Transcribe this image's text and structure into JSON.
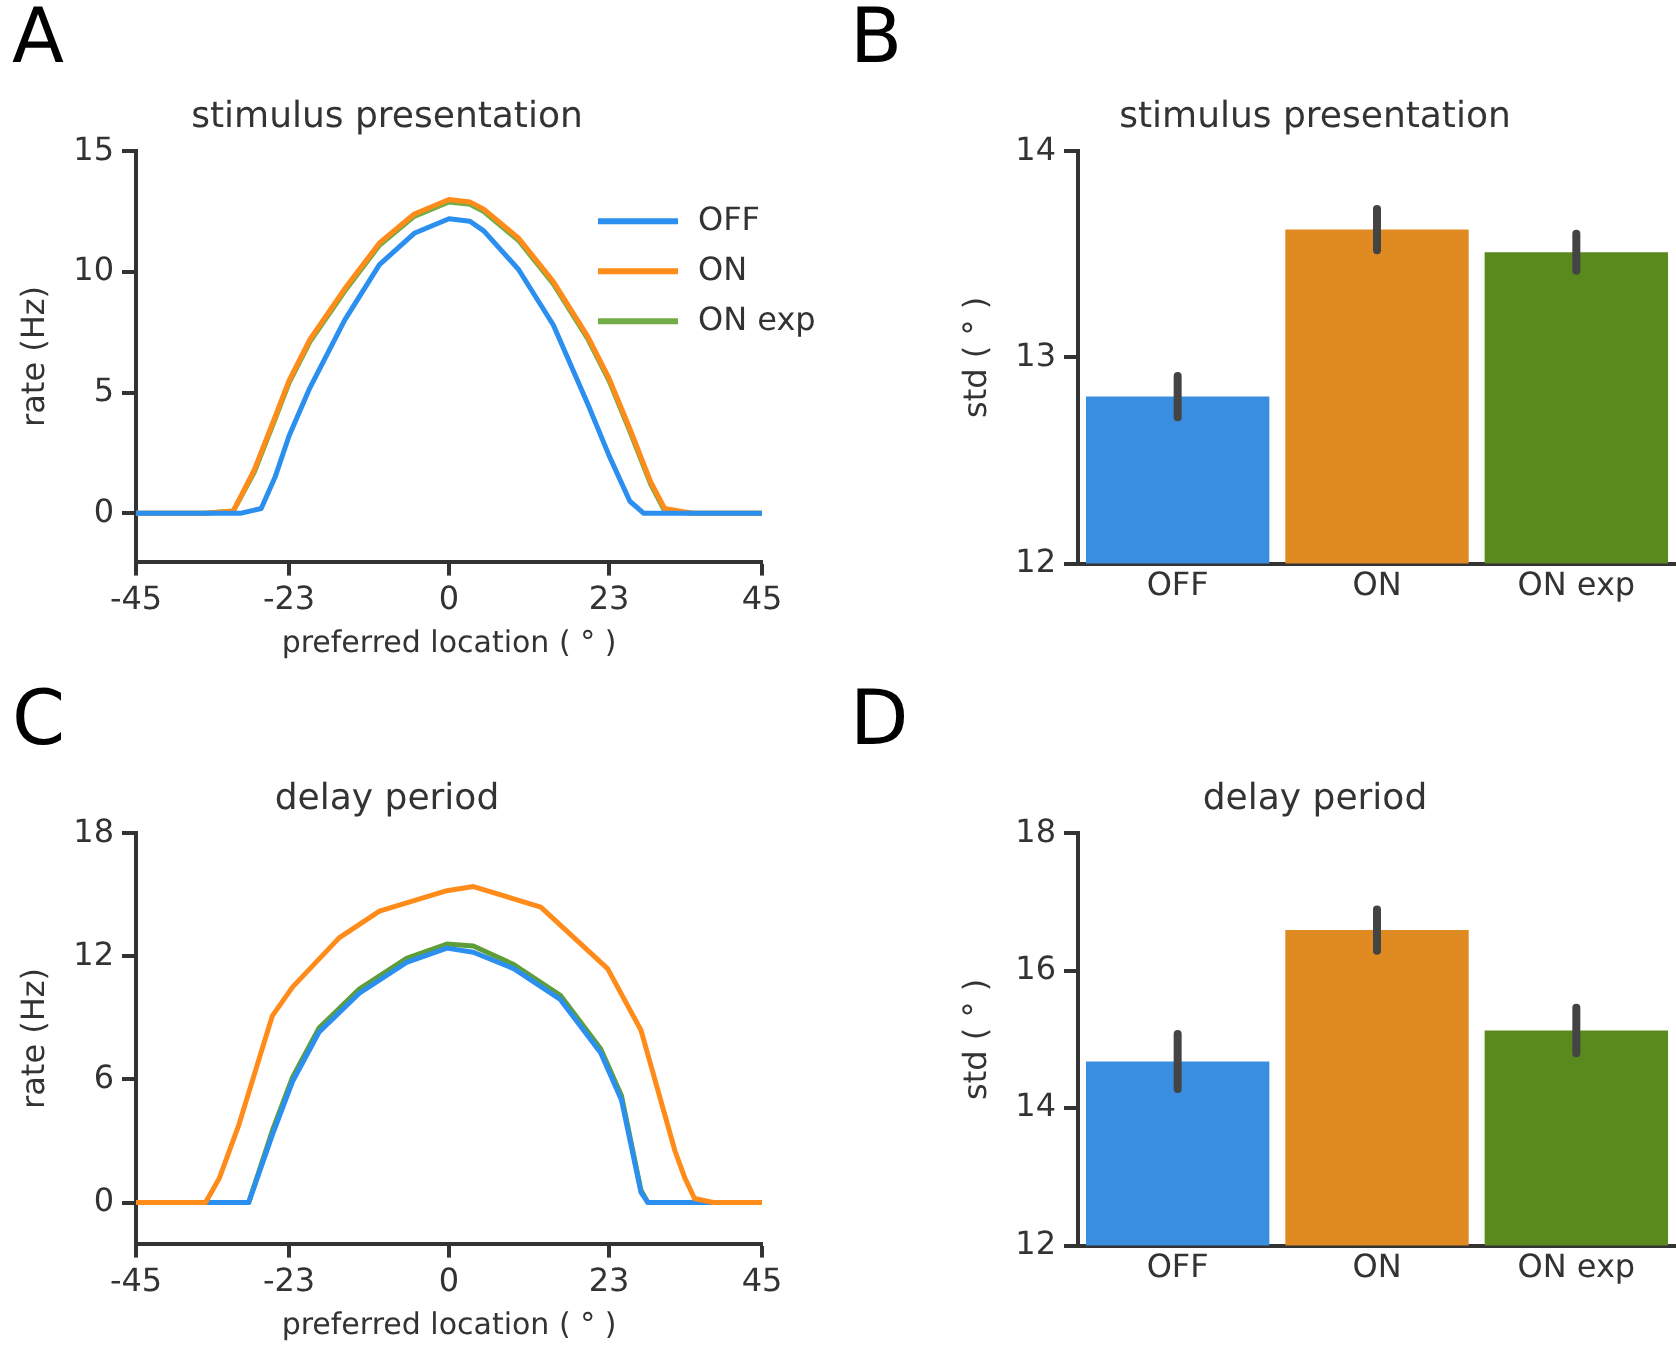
{
  "chart_data": [
    {
      "type": "line",
      "title": "stimulus presentation",
      "xlabel": "preferred location ( ° )",
      "ylabel": "rate (Hz)",
      "annotations": [
        "A"
      ],
      "legend": "top right",
      "xlim": [
        -45,
        45
      ],
      "xticks": [
        -45,
        -23,
        0,
        23,
        45
      ],
      "ylim": [
        -2,
        15
      ],
      "yticks": [
        0,
        5,
        10,
        15
      ],
      "series": [
        {
          "name": "OFF",
          "color": "#2b8ff0",
          "x": [
            -45,
            -35,
            -30,
            -27,
            -25,
            -23,
            -20,
            -15,
            -10,
            -5,
            0,
            3,
            5,
            10,
            15,
            20,
            23,
            26,
            28,
            35,
            45
          ],
          "values": [
            0,
            0,
            0,
            0.2,
            1.5,
            3.2,
            5.2,
            8,
            10.3,
            11.6,
            12.2,
            12.1,
            11.7,
            10.1,
            7.8,
            4.5,
            2.4,
            0.5,
            0,
            0,
            0
          ]
        },
        {
          "name": "ON",
          "color": "#ff8c1a",
          "x": [
            -45,
            -35,
            -31,
            -28,
            -25,
            -23,
            -20,
            -15,
            -10,
            -5,
            0,
            3,
            5,
            10,
            15,
            20,
            23,
            26,
            29,
            31,
            35,
            45
          ],
          "values": [
            0,
            0,
            0.1,
            1.8,
            4,
            5.5,
            7.2,
            9.3,
            11.2,
            12.4,
            13,
            12.9,
            12.6,
            11.4,
            9.6,
            7.3,
            5.6,
            3.5,
            1.3,
            0.2,
            0,
            0
          ]
        },
        {
          "name": "ON exp",
          "color": "#72ad48",
          "x": [
            -45,
            -35,
            -31,
            -28,
            -25,
            -23,
            -20,
            -15,
            -10,
            -5,
            0,
            3,
            5,
            10,
            15,
            20,
            23,
            26,
            29,
            31,
            35,
            45
          ],
          "values": [
            0,
            0,
            0.1,
            1.7,
            3.9,
            5.4,
            7.1,
            9.2,
            11.1,
            12.3,
            12.9,
            12.8,
            12.5,
            11.3,
            9.5,
            7.2,
            5.5,
            3.4,
            1.2,
            0.1,
            0,
            0
          ]
        }
      ]
    },
    {
      "type": "bar",
      "title": "stimulus presentation",
      "ylabel": "std ( ° )",
      "annotations": [
        "B"
      ],
      "categories": [
        "OFF",
        "ON",
        "ON exp"
      ],
      "values": [
        12.81,
        13.62,
        13.51
      ],
      "errors": [
        0.1,
        0.1,
        0.09
      ],
      "colors": [
        "#3a8ee0",
        "#e08a22",
        "#5a8a1e"
      ],
      "ylim": [
        12,
        14
      ],
      "yticks": [
        12,
        13,
        14
      ]
    },
    {
      "type": "line",
      "title": "delay period",
      "xlabel": "preferred location ( ° )",
      "ylabel": "rate (Hz)",
      "annotations": [
        "C"
      ],
      "xlim": [
        -45,
        45
      ],
      "xticks": [
        -45,
        -23,
        0,
        23,
        45
      ],
      "ylim": [
        -2,
        18
      ],
      "yticks": [
        0,
        6,
        12,
        18
      ],
      "series": [
        {
          "color": "#ff8c1a",
          "x": [
            -45,
            -40,
            -35,
            -33,
            -30.2,
            -25.4,
            -22.5,
            -15.8,
            -10,
            -0.3,
            3.5,
            13.2,
            22.8,
            27.6,
            32.5,
            33.9,
            35.3,
            38,
            45
          ],
          "values": [
            0,
            0,
            0,
            1.2,
            3.8,
            9.1,
            10.5,
            12.9,
            14.2,
            15.2,
            15.4,
            14.4,
            11.4,
            8.4,
            2.5,
            1.2,
            0.2,
            0,
            0
          ]
        },
        {
          "color": "#2b8ff0",
          "x": [
            -45,
            -35,
            -28.8,
            -25.4,
            -22.5,
            -18.7,
            -12.9,
            -6.1,
            -0.3,
            3.5,
            9.3,
            16,
            21.8,
            24.8,
            27.6,
            28.6,
            35,
            45
          ],
          "values": [
            0,
            0,
            0,
            3.3,
            5.9,
            8.3,
            10.2,
            11.7,
            12.4,
            12.2,
            11.4,
            9.9,
            7.3,
            5,
            0.5,
            0,
            0,
            0
          ]
        },
        {
          "color": "#5e9e3a",
          "x": [
            -45,
            -35,
            -28.8,
            -25.4,
            -22.5,
            -18.7,
            -12.9,
            -6.1,
            -0.3,
            3.5,
            9.3,
            16,
            21.8,
            24.8,
            27.6,
            28.6,
            35,
            45
          ],
          "values": [
            0,
            0,
            0,
            3.5,
            6.1,
            8.5,
            10.4,
            11.9,
            12.6,
            12.5,
            11.6,
            10.1,
            7.5,
            5.2,
            0.6,
            0,
            0,
            0
          ]
        }
      ]
    },
    {
      "type": "bar",
      "title": "delay period",
      "ylabel": "std ( ° )",
      "annotations": [
        "D"
      ],
      "categories": [
        "OFF",
        "ON",
        "ON exp"
      ],
      "values": [
        14.68,
        16.59,
        15.13
      ],
      "errors": [
        0.4,
        0.3,
        0.33
      ],
      "colors": [
        "#3a8ee0",
        "#e08a22",
        "#5a8a1e"
      ],
      "ylim": [
        12,
        18
      ],
      "yticks": [
        12,
        14,
        16,
        18
      ]
    }
  ]
}
